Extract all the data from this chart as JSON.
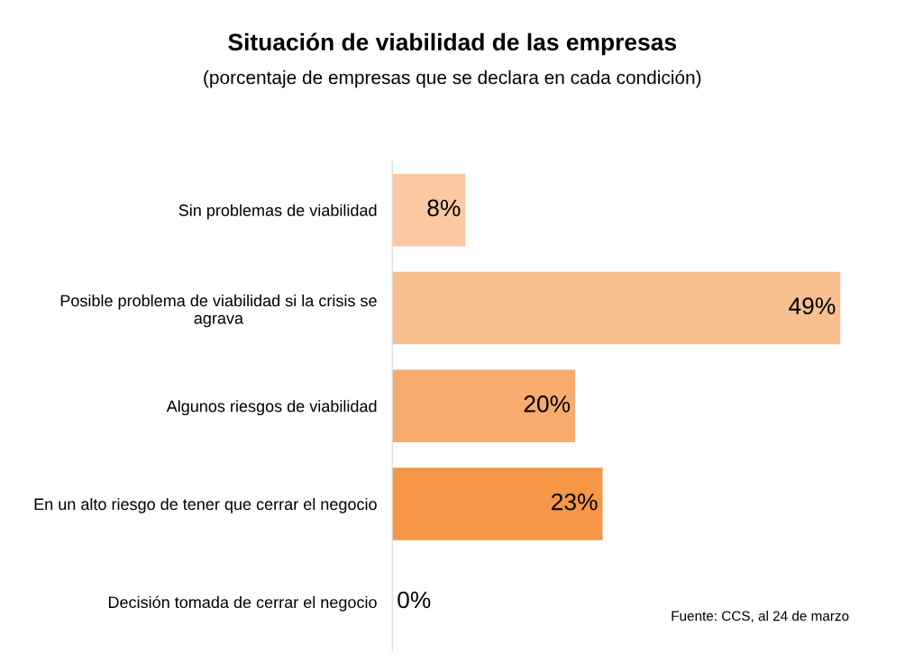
{
  "chart_data": {
    "type": "bar",
    "orientation": "horizontal",
    "title": "Situación de viabilidad de las empresas",
    "subtitle": "(porcentaje de empresas que se declara en cada condición)",
    "categories": [
      "Sin problemas de viabilidad",
      "Posible problema de viabilidad si la crisis se\nagrava",
      "Algunos riesgos de viabilidad",
      "En un alto riesgo de tener que cerrar el negocio",
      "Decisión tomada de cerrar el negocio"
    ],
    "values": [
      8,
      49,
      20,
      23,
      0
    ],
    "colors": [
      "#fac9a3",
      "#f8c090",
      "#f7ab6e",
      "#f59746",
      "#f59746"
    ],
    "value_labels": [
      "8%",
      "49%",
      "20%",
      "23%",
      "0%"
    ],
    "annotations": [
      "Fuente: CCS, al 24 de marzo"
    ],
    "grid": false,
    "legend": false
  }
}
